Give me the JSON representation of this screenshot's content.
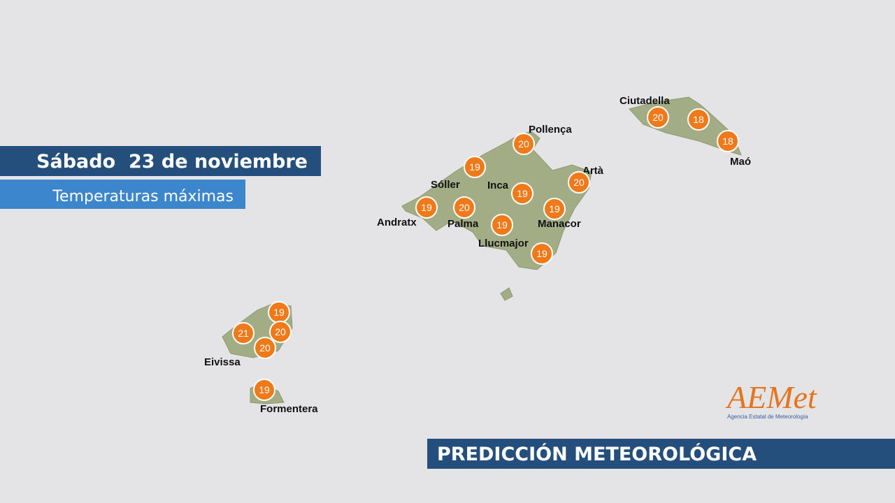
{
  "header": {
    "title": "Sábado  23 de noviembre",
    "subtitle": "Temperaturas máximas"
  },
  "places": [
    "Ciutadella",
    "Pollença",
    "Artà",
    "Maó",
    "Sóller",
    "Inca",
    "Andratx",
    "Palma",
    "Manacor",
    "Llucmajor",
    "Eivissa",
    "Formentera"
  ],
  "temperatures": [
    20,
    18,
    18,
    20,
    19,
    20,
    19,
    20,
    19,
    19,
    19,
    19,
    19,
    21,
    20,
    20,
    19
  ],
  "logo": {
    "name": "AEMet",
    "subtitle": "Agencia Estatal de Meteorología"
  },
  "footer": "PREDICCIÓN METEOROLÓGICA"
}
